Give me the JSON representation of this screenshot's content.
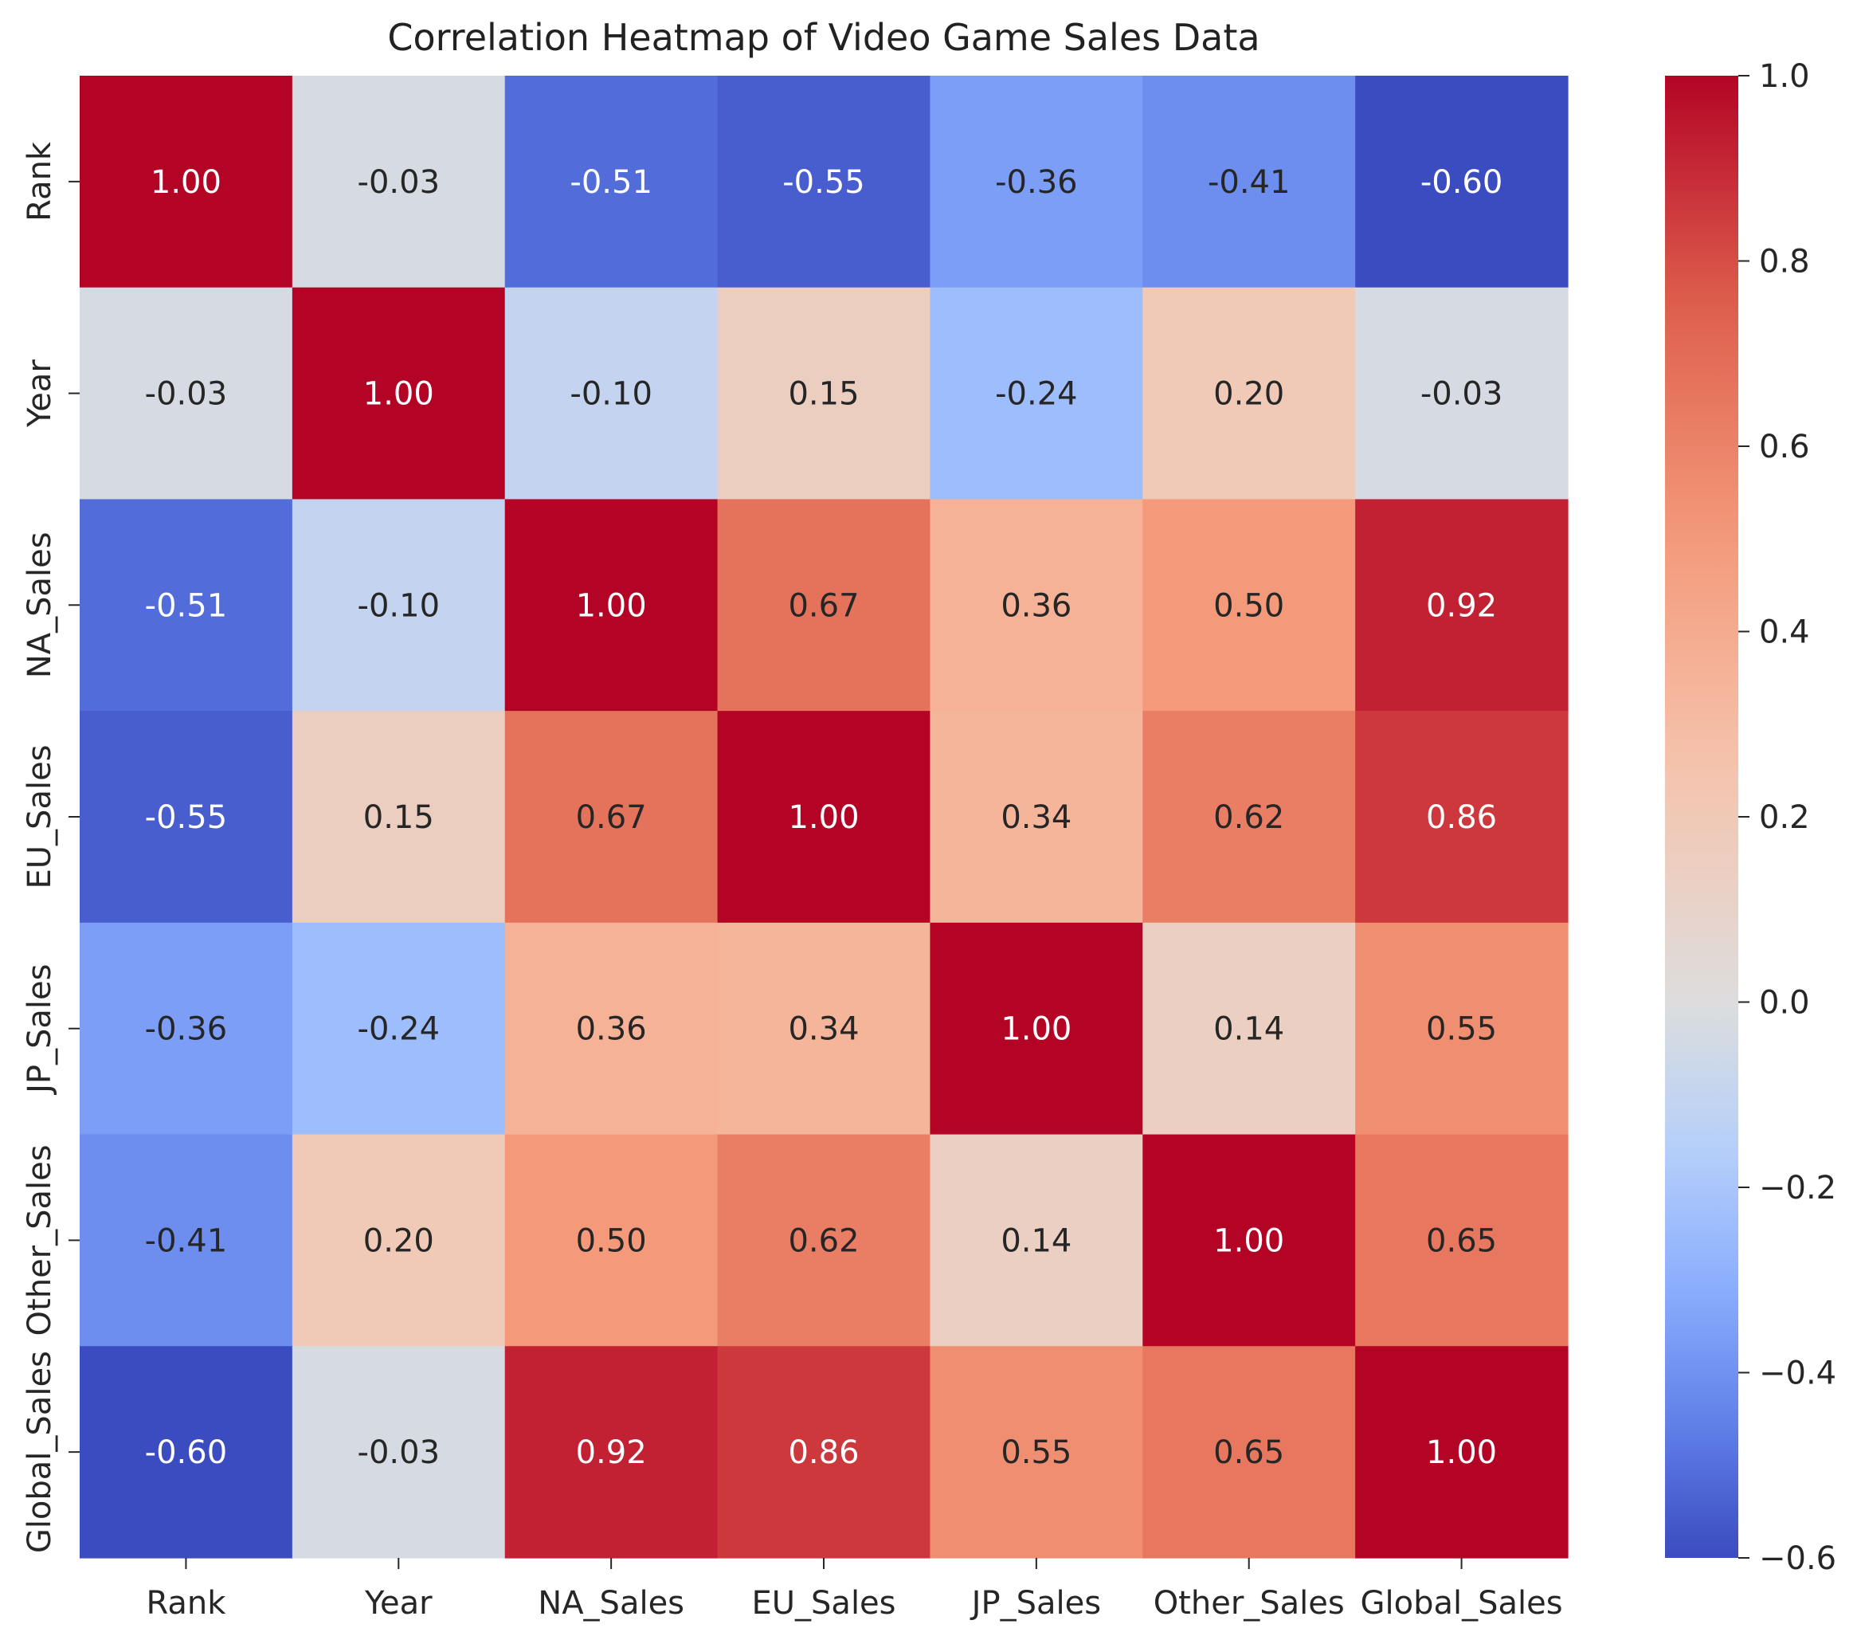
{
  "chart_data": {
    "type": "heatmap",
    "title": "Correlation Heatmap of Video Game Sales Data",
    "xlabel": "",
    "ylabel": "",
    "rows": [
      "Rank",
      "Year",
      "NA_Sales",
      "EU_Sales",
      "JP_Sales",
      "Other_Sales",
      "Global_Sales"
    ],
    "columns": [
      "Rank",
      "Year",
      "NA_Sales",
      "EU_Sales",
      "JP_Sales",
      "Other_Sales",
      "Global_Sales"
    ],
    "values": [
      [
        1.0,
        -0.03,
        -0.51,
        -0.55,
        -0.36,
        -0.41,
        -0.6
      ],
      [
        -0.03,
        1.0,
        -0.1,
        0.15,
        -0.24,
        0.2,
        -0.03
      ],
      [
        -0.51,
        -0.1,
        1.0,
        0.67,
        0.36,
        0.5,
        0.92
      ],
      [
        -0.55,
        0.15,
        0.67,
        1.0,
        0.34,
        0.62,
        0.86
      ],
      [
        -0.36,
        -0.24,
        0.36,
        0.34,
        1.0,
        0.14,
        0.55
      ],
      [
        -0.41,
        0.2,
        0.5,
        0.62,
        0.14,
        1.0,
        0.65
      ],
      [
        -0.6,
        -0.03,
        0.92,
        0.86,
        0.55,
        0.65,
        1.0
      ]
    ],
    "value_format": "0.00",
    "colormap": "coolwarm",
    "colorbar": {
      "range": [
        -0.6,
        1.0
      ],
      "ticks": [
        -0.6,
        -0.4,
        -0.2,
        0.0,
        0.2,
        0.4,
        0.6,
        0.8,
        1.0
      ],
      "tick_labels": [
        "−0.6",
        "−0.4",
        "−0.2",
        "0.0",
        "0.2",
        "0.4",
        "0.6",
        "0.8",
        "1.0"
      ]
    },
    "grid": false,
    "legend": "colorbar-right"
  }
}
